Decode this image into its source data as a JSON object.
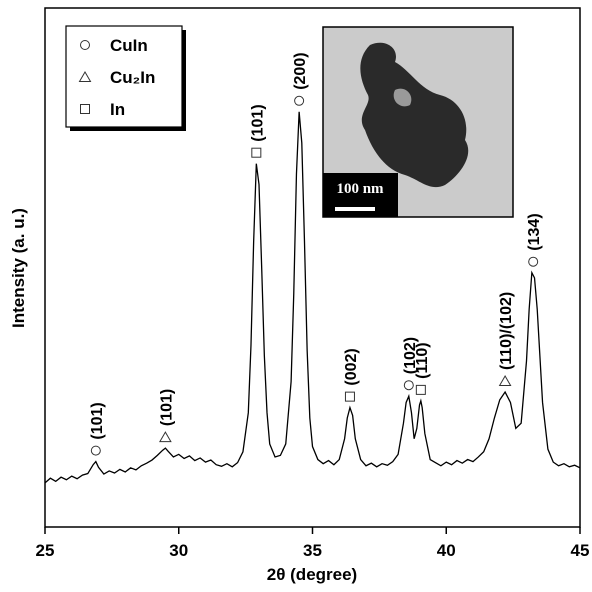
{
  "chart_data": {
    "type": "line",
    "xlabel": "2θ (degree)",
    "ylabel": "Intensity (a. u.)",
    "xlim": [
      25,
      45
    ],
    "xticks": [
      25,
      30,
      35,
      40,
      45
    ],
    "ylim": [
      0,
      100
    ],
    "series": [
      {
        "color": "#000000",
        "x": [
          25.0,
          25.2,
          25.4,
          25.6,
          25.8,
          26.0,
          26.2,
          26.4,
          26.6,
          26.8,
          26.9,
          27.0,
          27.2,
          27.4,
          27.6,
          27.8,
          28.0,
          28.2,
          28.4,
          28.6,
          28.8,
          29.0,
          29.2,
          29.4,
          29.5,
          29.6,
          29.8,
          30.0,
          30.2,
          30.4,
          30.6,
          30.8,
          31.0,
          31.2,
          31.4,
          31.6,
          31.8,
          32.0,
          32.2,
          32.4,
          32.6,
          32.7,
          32.8,
          32.9,
          33.0,
          33.1,
          33.2,
          33.3,
          33.4,
          33.6,
          33.8,
          34.0,
          34.2,
          34.3,
          34.4,
          34.5,
          34.6,
          34.7,
          34.8,
          34.9,
          35.0,
          35.2,
          35.4,
          35.6,
          35.8,
          36.0,
          36.2,
          36.3,
          36.4,
          36.5,
          36.6,
          36.8,
          37.0,
          37.2,
          37.4,
          37.6,
          37.8,
          38.0,
          38.2,
          38.4,
          38.5,
          38.6,
          38.7,
          38.8,
          38.9,
          39.0,
          39.05,
          39.1,
          39.2,
          39.4,
          39.6,
          39.8,
          40.0,
          40.2,
          40.4,
          40.6,
          40.8,
          41.0,
          41.2,
          41.4,
          41.6,
          41.8,
          42.0,
          42.2,
          42.4,
          42.6,
          42.8,
          43.0,
          43.1,
          43.2,
          43.3,
          43.4,
          43.5,
          43.6,
          43.8,
          44.0,
          44.2,
          44.4,
          44.6,
          44.8,
          45.0
        ],
        "values": [
          8.5,
          9.4,
          8.8,
          9.6,
          9.1,
          9.8,
          9.3,
          10.0,
          10.3,
          12.0,
          12.6,
          11.5,
          10.2,
          10.8,
          10.4,
          11.1,
          10.6,
          11.4,
          11.0,
          11.8,
          12.3,
          12.9,
          13.8,
          14.8,
          15.2,
          14.6,
          13.5,
          14.0,
          13.2,
          13.7,
          12.8,
          13.3,
          12.5,
          12.9,
          12.0,
          11.7,
          12.2,
          11.6,
          12.4,
          14.5,
          22,
          35,
          55,
          70,
          66,
          50,
          33,
          22,
          16,
          13.5,
          13.8,
          16,
          28,
          45,
          68,
          80,
          74,
          55,
          34,
          21,
          15.5,
          13,
          12.2,
          12.8,
          12.0,
          13.0,
          17,
          21,
          23,
          21.5,
          17,
          13,
          11.8,
          12.3,
          11.6,
          12.2,
          11.9,
          12.6,
          14,
          20,
          24,
          25.2,
          22,
          17,
          19,
          23.5,
          24.3,
          23,
          18,
          13,
          12.4,
          11.8,
          12.5,
          12.0,
          12.8,
          12.3,
          13.0,
          12.6,
          13.5,
          14.5,
          17,
          21,
          24.5,
          26,
          24,
          19,
          20,
          32,
          42,
          49,
          48,
          42,
          33,
          24,
          15,
          12.5,
          11.8,
          12.2,
          11.6,
          11.9,
          11.4
        ]
      }
    ],
    "annotations": [
      {
        "x": 26.9,
        "label": "(101)",
        "marker": "circle"
      },
      {
        "x": 29.5,
        "label": "(101)",
        "marker": "triangle"
      },
      {
        "x": 32.9,
        "label": "(101)",
        "marker": "square"
      },
      {
        "x": 34.5,
        "label": "(200)",
        "marker": "circle"
      },
      {
        "x": 36.4,
        "label": "(002)",
        "marker": "square"
      },
      {
        "x": 38.6,
        "label": "(102)",
        "marker": "circle"
      },
      {
        "x": 39.05,
        "label": "(110)",
        "marker": "square"
      },
      {
        "x": 42.2,
        "label": "(110)/(102)",
        "marker": "triangle"
      },
      {
        "x": 43.25,
        "label": "(134)",
        "marker": "circle"
      }
    ],
    "legend": [
      {
        "label": "CuIn",
        "marker": "circle"
      },
      {
        "label": "Cu₂In",
        "marker": "triangle"
      },
      {
        "label": "In",
        "marker": "square"
      }
    ],
    "inset_scale": "100 nm"
  }
}
